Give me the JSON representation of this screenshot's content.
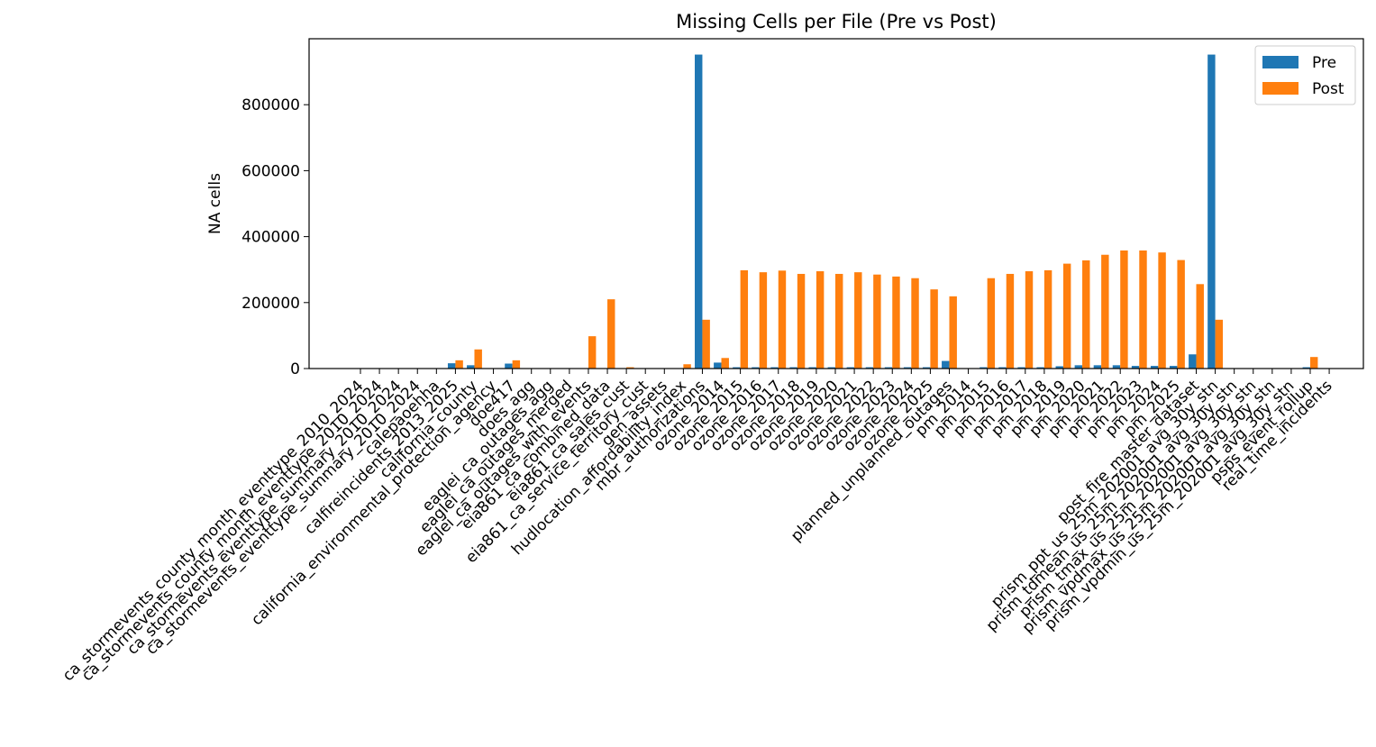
{
  "chart_data": {
    "type": "bar",
    "title": "Missing Cells per File (Pre vs Post)",
    "xlabel": "",
    "ylabel": "NA cells",
    "ylim": [
      0,
      1000000
    ],
    "yticks": [
      0,
      200000,
      400000,
      600000,
      800000
    ],
    "grid": false,
    "legend_position": "top-right",
    "categories": [
      "ca_stormevents_county_month_eventtype_2010_2024",
      "ca_stormevents_county_month_eventtype_2010_2024",
      "ca_stormevents_eventtype_summary_2010_2024",
      "ca_stormevents_eventtype_summary_2010_2024",
      "calepaoehha",
      "calfireincidents_2013_2025",
      "california_county",
      "california_environmental_protection_agency",
      "doe417",
      "does_agg",
      "eaglei_ca_outages_agg",
      "eaglei_ca_outages_merged",
      "eaglei_ca_outages_with_events",
      "eia861_ca_combined_data",
      "eia861_ca_sales_cust",
      "eia861_ca_service_territory_cust",
      "gen_assets",
      "hudlocation_affordability_index",
      "mbr_authorizations",
      "ozone_2014",
      "ozone_2015",
      "ozone_2016",
      "ozone_2017",
      "ozone_2018",
      "ozone_2019",
      "ozone_2020",
      "ozone_2021",
      "ozone_2022",
      "ozone_2023",
      "ozone_2024",
      "ozone_2025",
      "planned_unplanned_outages",
      "pm_2014",
      "pm_2015",
      "pm_2016",
      "pm_2017",
      "pm_2018",
      "pm_2019",
      "pm_2020",
      "pm_2021",
      "pm_2022",
      "pm_2023",
      "pm_2024",
      "pm_2025",
      "post_fire_master_dataset",
      "prism_ppt_us_25m_202001_avg_30y_stn",
      "prism_tdmean_us_25m_202001_avg_30y_stn",
      "prism_tmax_us_25m_202001_avg_30y_stn",
      "prism_vpdmax_us_25m_202001_avg_30y_stn",
      "prism_vpdmin_us_25m_202001_avg_30y_stn",
      "psps_event_rollup",
      "real_time_incidents"
    ],
    "series": [
      {
        "name": "Pre",
        "color": "#1f77b4",
        "values": [
          0,
          1000,
          0,
          0,
          0,
          16000,
          10000,
          0,
          15000,
          0,
          0,
          0,
          0,
          0,
          0,
          0,
          0,
          0,
          952000,
          18000,
          4000,
          4000,
          4000,
          4000,
          4000,
          4000,
          4000,
          4000,
          4000,
          4000,
          4000,
          23000,
          0,
          4000,
          4000,
          4000,
          4000,
          7000,
          10000,
          10000,
          10000,
          8000,
          8000,
          8000,
          43000,
          952000,
          0,
          0,
          0,
          0,
          4000,
          0
        ]
      },
      {
        "name": "Post",
        "color": "#ff7f0e",
        "values": [
          0,
          0,
          0,
          0,
          0,
          25000,
          58000,
          0,
          25000,
          0,
          0,
          0,
          98000,
          210000,
          4000,
          0,
          0,
          13000,
          148000,
          32000,
          298000,
          292000,
          297000,
          287000,
          295000,
          287000,
          292000,
          285000,
          279000,
          274000,
          240000,
          219000,
          0,
          274000,
          287000,
          295000,
          298000,
          318000,
          328000,
          345000,
          358000,
          358000,
          352000,
          329000,
          256000,
          148000,
          0,
          0,
          0,
          0,
          35000,
          0
        ]
      }
    ]
  }
}
